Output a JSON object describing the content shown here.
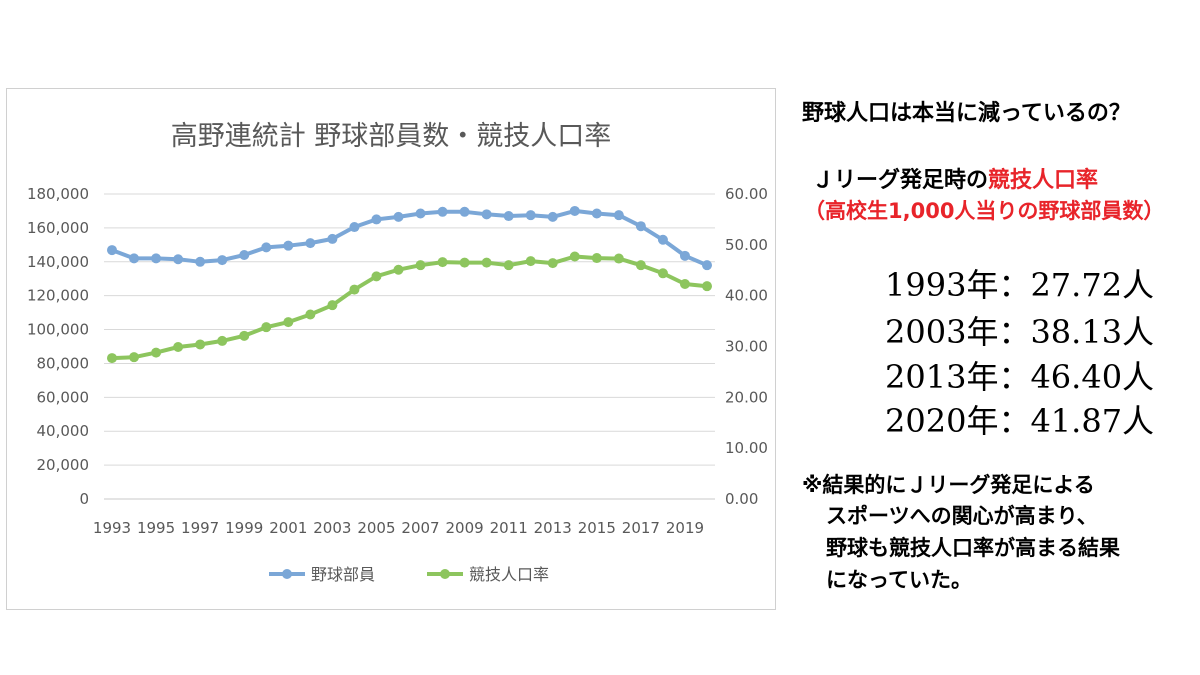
{
  "chart_data": {
    "type": "line",
    "title": "高野連統計 野球部員数・競技人口率",
    "x": [
      1993,
      1994,
      1995,
      1996,
      1997,
      1998,
      1999,
      2000,
      2001,
      2002,
      2003,
      2004,
      2005,
      2006,
      2007,
      2008,
      2009,
      2010,
      2011,
      2012,
      2013,
      2014,
      2015,
      2016,
      2017,
      2018,
      2019,
      2020
    ],
    "x_tick_labels": [
      "1993",
      "1995",
      "1997",
      "1999",
      "2001",
      "2003",
      "2005",
      "2007",
      "2009",
      "2011",
      "2013",
      "2015",
      "2017",
      "2019"
    ],
    "y_left": {
      "min": 0,
      "max": 180000,
      "step": 20000,
      "tick_labels": [
        "0",
        "20,000",
        "40,000",
        "60,000",
        "80,000",
        "100,000",
        "120,000",
        "140,000",
        "160,000",
        "180,000"
      ]
    },
    "y_right": {
      "min": 0,
      "max": 60,
      "step": 10,
      "tick_labels": [
        "0.00",
        "10.00",
        "20.00",
        "30.00",
        "40.00",
        "50.00",
        "60.00"
      ]
    },
    "grid": true,
    "legend_position": "bottom",
    "series": [
      {
        "name": "野球部員",
        "axis": "left",
        "color": "#7ba7d7",
        "values": [
          146900,
          142000,
          142000,
          141500,
          140000,
          141000,
          144000,
          148500,
          149500,
          151000,
          153500,
          160500,
          165000,
          166500,
          168500,
          169500,
          169500,
          168000,
          167000,
          167500,
          166500,
          170000,
          168500,
          167500,
          161000,
          153000,
          143500,
          138000
        ]
      },
      {
        "name": "競技人口率",
        "axis": "right",
        "color": "#8dc55e",
        "values": [
          27.72,
          27.9,
          28.8,
          29.9,
          30.4,
          31.1,
          32.1,
          33.8,
          34.8,
          36.3,
          38.13,
          41.2,
          43.8,
          45.1,
          46.0,
          46.6,
          46.5,
          46.5,
          46.0,
          46.8,
          46.4,
          47.7,
          47.4,
          47.3,
          46.0,
          44.4,
          42.3,
          41.87
        ]
      }
    ]
  },
  "side": {
    "question": "野球人口は本当に減っているの？",
    "heading_black": "Ｊリーグ発足時の",
    "heading_red": "競技人口率",
    "subheading": "（高校生1,000人当りの野球部員数）",
    "stats": [
      "1993年：27.72人",
      "2003年：38.13人",
      "2013年：46.40人",
      "2020年：41.87人"
    ],
    "note_lines": [
      "※結果的にＪリーグ発足による",
      "スポーツへの関心が高まり、",
      "野球も競技人口率が高まる結果",
      "になっていた。"
    ]
  }
}
